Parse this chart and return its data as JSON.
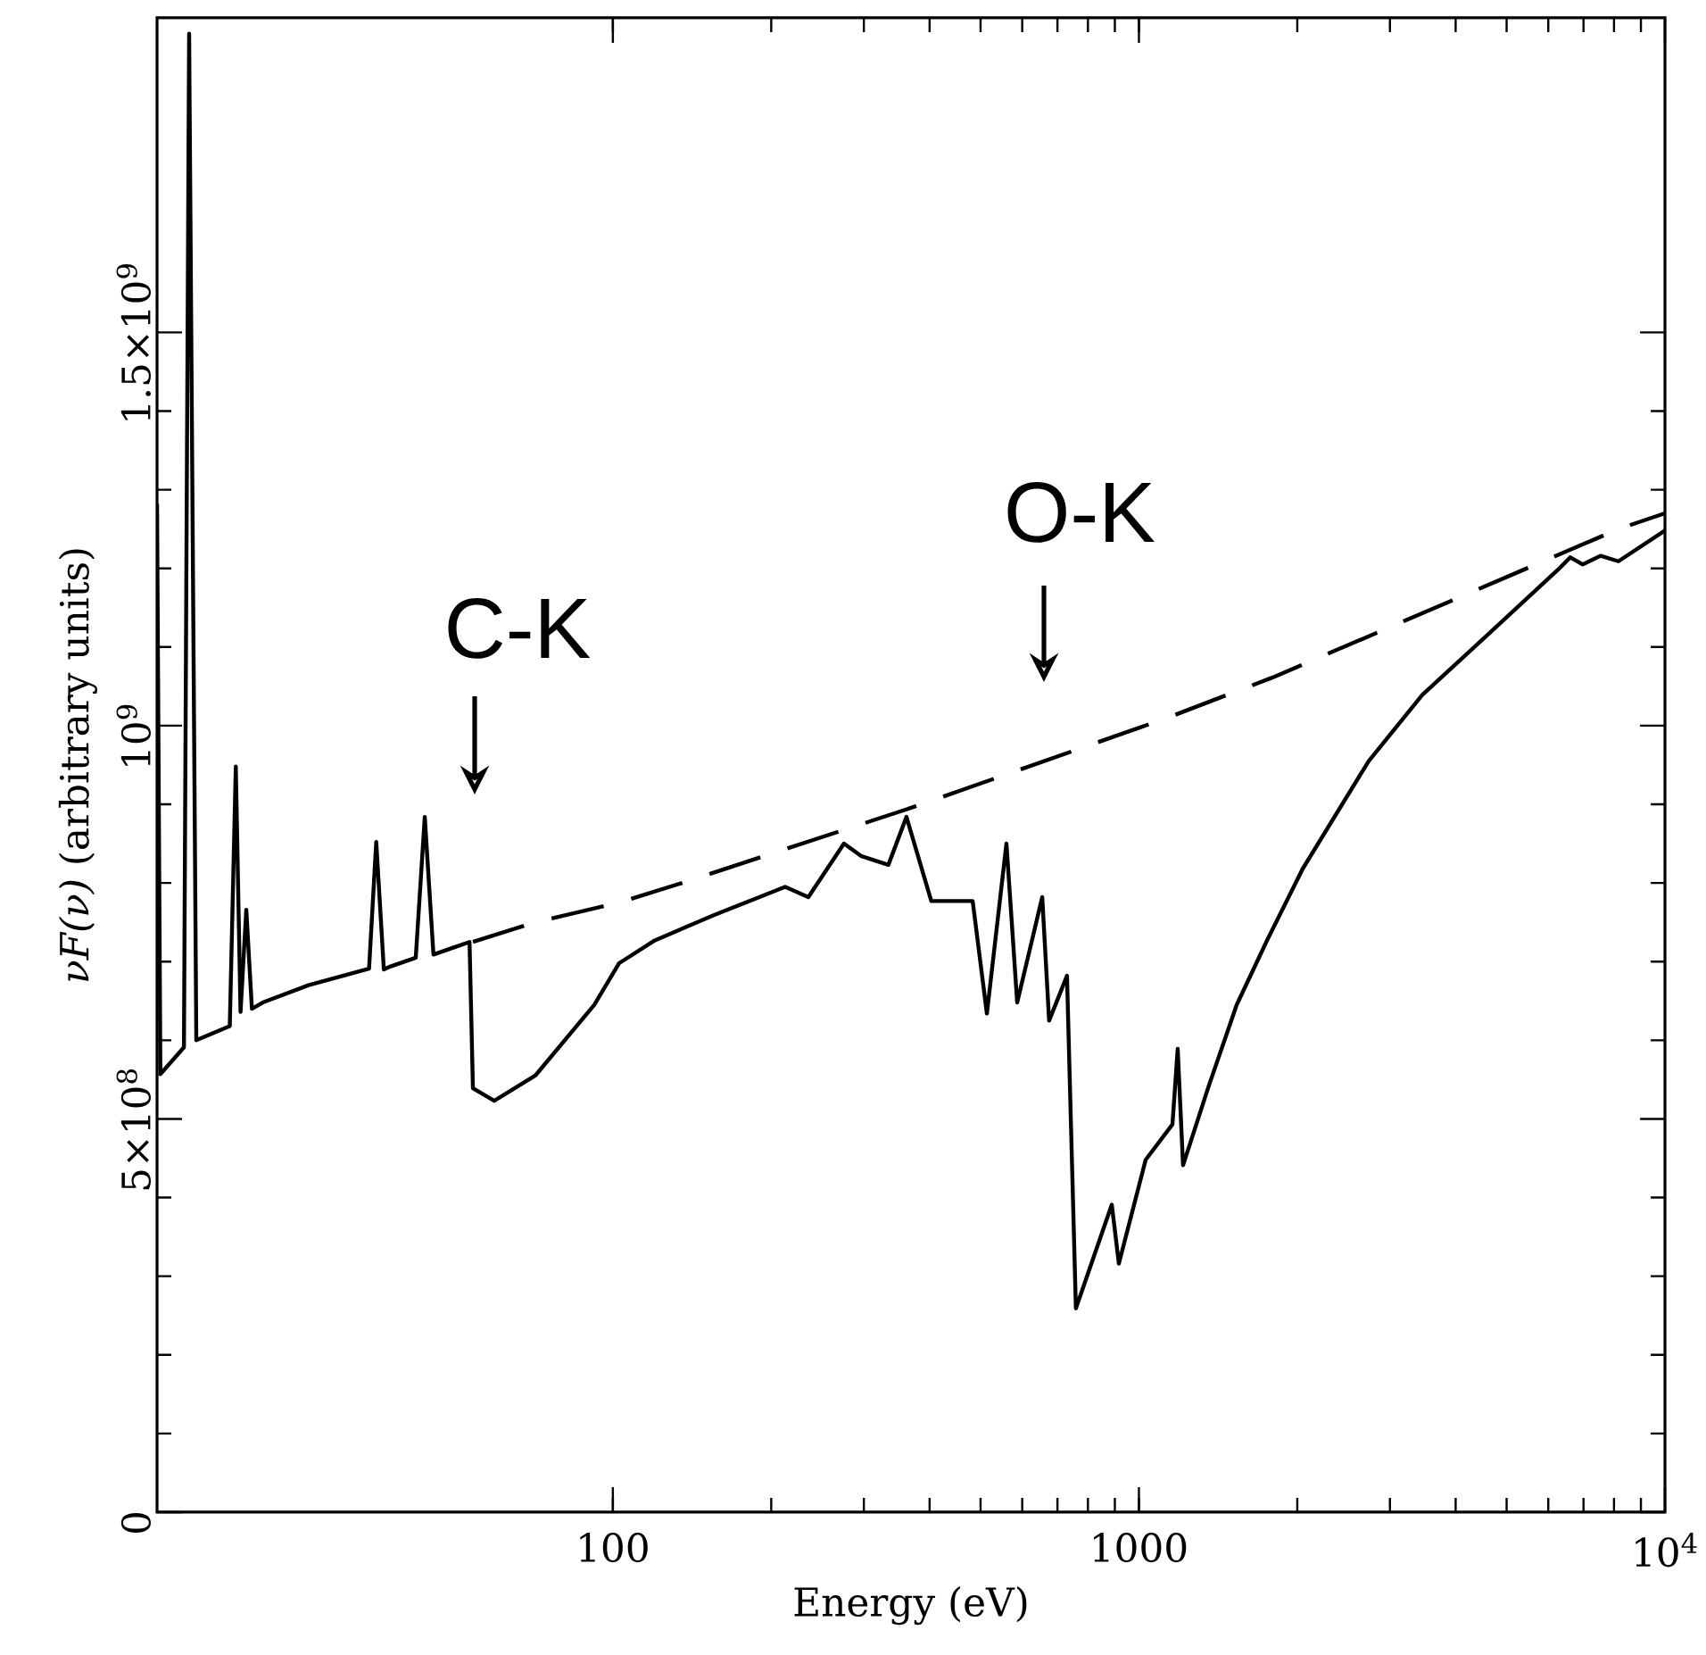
{
  "chart_data": {
    "type": "line",
    "xlabel": "Energy (eV)",
    "ylabel": "*νF(ν)* (arbitrary units)",
    "log": "x",
    "marker": "none",
    "xlim": [
      13.6,
      10000
    ],
    "xticks": [
      100,
      1000,
      {
        "value": 10000,
        "label": "10$^{4}$"
      }
    ],
    "ylim": [
      0,
      1900000000.0
    ],
    "yticks": [
      0,
      {
        "value": 500000000.0,
        "label": "5×10$^{8}$"
      },
      {
        "value": 1000000000.0,
        "label": "10$^{9}$"
      },
      {
        "value": 1500000000.0,
        "label": "1.5×10$^{9}$"
      }
    ],
    "annotations": [
      "C-K",
      "O-K"
    ],
    "series": [
      {
        "color": "#000000",
        "line_style": "solid",
        "x": [
          13.6,
          13.8,
          15.3,
          15.65,
          16.15,
          18.7,
          19.2,
          19.6,
          20.1,
          20.6,
          21.6,
          26.4,
          34.4,
          35.5,
          36.7,
          37.5,
          42.2,
          43.9,
          45.6,
          53.4,
          54.2,
          59.5,
          71.2,
          92.2,
          102.8,
          120.2,
          155.5,
          212.6,
          235.3,
          275,
          297,
          334,
          361.5,
          403,
          483,
          514,
          560,
          587,
          655,
          675,
          730,
          759,
          888,
          916,
          1030,
          1158,
          1185,
          1213,
          1353,
          1534,
          1752,
          2048,
          2734,
          3455,
          4577,
          6255,
          6607,
          6979,
          7546,
          8157,
          10000
        ],
        "values": [
          1282000000.0,
          557000000.0,
          591000000.0,
          1880000000.0,
          600000000.0,
          618000000.0,
          948000000.0,
          636000000.0,
          766000000.0,
          640000000.0,
          648000000.0,
          670000000.0,
          691000000.0,
          852000000.0,
          690000000.0,
          693000000.0,
          705000000.0,
          884000000.0,
          709000000.0,
          725000000.0,
          539000000.0,
          523000000.0,
          555000000.0,
          645000000.0,
          698000000.0,
          727000000.0,
          759000000.0,
          795000000.0,
          782000000.0,
          850000000.0,
          834000000.0,
          823000000.0,
          884000000.0,
          777000000.0,
          777000000.0,
          634000000.0,
          850000000.0,
          648000000.0,
          782000000.0,
          625000000.0,
          682000000.0,
          259000000.0,
          391000000.0,
          316000000.0,
          448000000.0,
          493000000.0,
          589000000.0,
          441000000.0,
          539000000.0,
          645000000.0,
          727000000.0,
          818000000.0,
          955000000.0,
          1039000000.0,
          1114000000.0,
          1198000000.0,
          1214000000.0,
          1205000000.0,
          1216000000.0,
          1209000000.0,
          1248000000.0
        ]
      },
      {
        "color": "#000000",
        "line_style": "dashed",
        "x": [
          54.2,
          71.2,
          102.8,
          138.4,
          367,
          483,
          1122,
          1792,
          8157,
          10000
        ],
        "values": [
          725000000.0,
          750000000.0,
          775000000.0,
          802000000.0,
          895000000.0,
          923000000.0,
          1009000000.0,
          1061000000.0,
          1250000000.0,
          1270000000.0
        ]
      }
    ]
  }
}
